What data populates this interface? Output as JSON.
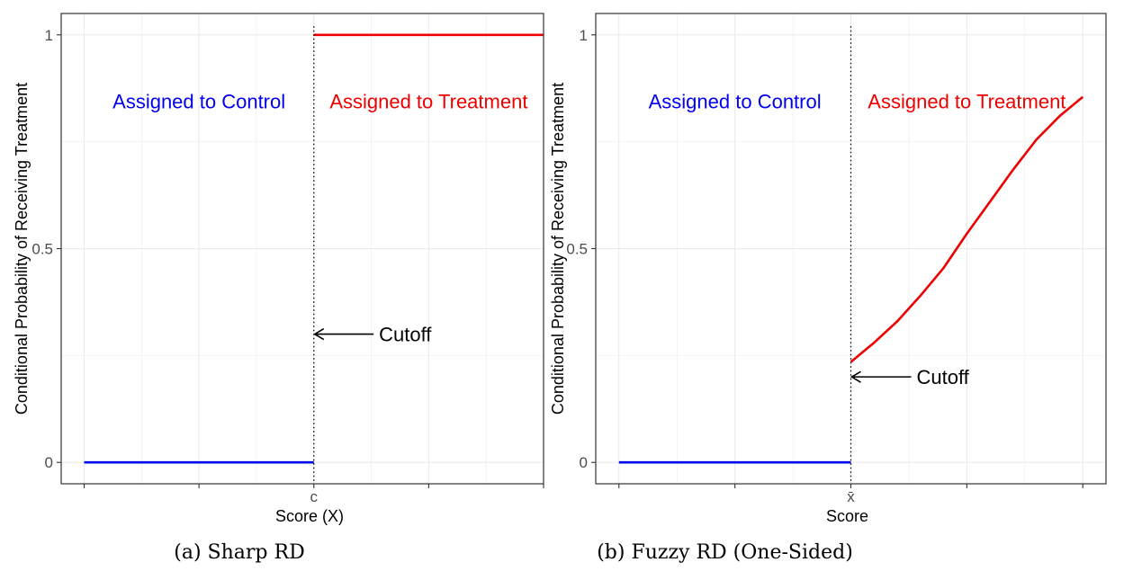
{
  "chart_data": [
    {
      "type": "line",
      "caption": "(a) Sharp RD",
      "xlabel": "Score (X)",
      "ylabel": "Conditional Probability of Receiving Treatment",
      "ylim": [
        -0.05,
        1.05
      ],
      "xlim": [
        -1.1,
        1.0
      ],
      "cutoff": 0,
      "cutoff_tick_label": "c",
      "yticks": [
        0,
        0.5,
        1
      ],
      "ytick_labels": [
        "0",
        "0.5",
        "1"
      ],
      "grid": true,
      "series": [
        {
          "color": "#0000ee",
          "x": [
            -1,
            0
          ],
          "y": [
            0,
            0
          ]
        },
        {
          "color": "#ee0000",
          "x": [
            0,
            1
          ],
          "y": [
            1,
            1
          ]
        }
      ],
      "regions": [
        {
          "text": "Assigned to Control",
          "color": "#0000ee",
          "x": -0.5,
          "y": 0.845
        },
        {
          "text": "Assigned to Treatment",
          "color": "#ee0000",
          "x": 0.5,
          "y": 0.845
        }
      ],
      "annotation": {
        "text": "Cutoff",
        "arrow_to_x": 0,
        "arrow_to_y": 0.3,
        "arrow_from_x": 0.26
      }
    },
    {
      "type": "line",
      "caption": "(b) Fuzzy RD (One-Sided)",
      "xlabel": "Score",
      "ylabel": "Conditional Probability of Receiving Treatment",
      "ylim": [
        -0.05,
        1.05
      ],
      "xlim": [
        -1.1,
        1.1
      ],
      "cutoff": 0,
      "cutoff_tick_label": "x̄",
      "yticks": [
        0,
        0.5,
        1
      ],
      "ytick_labels": [
        "0",
        "0.5",
        "1"
      ],
      "grid": true,
      "series": [
        {
          "color": "#0000ee",
          "x": [
            -1,
            0
          ],
          "y": [
            0,
            0
          ]
        },
        {
          "color": "#ee0000",
          "x": [
            0,
            0.1,
            0.2,
            0.3,
            0.4,
            0.5,
            0.6,
            0.7,
            0.8,
            0.9,
            1.0
          ],
          "y": [
            0.235,
            0.28,
            0.33,
            0.39,
            0.455,
            0.535,
            0.61,
            0.685,
            0.755,
            0.81,
            0.855
          ]
        }
      ],
      "regions": [
        {
          "text": "Assigned to Control",
          "color": "#0000ee",
          "x": -0.5,
          "y": 0.845
        },
        {
          "text": "Assigned to Treatment",
          "color": "#ee0000",
          "x": 0.5,
          "y": 0.845
        }
      ],
      "annotation": {
        "text": "Cutoff",
        "arrow_to_x": 0,
        "arrow_to_y": 0.2,
        "arrow_from_x": 0.26
      }
    }
  ]
}
